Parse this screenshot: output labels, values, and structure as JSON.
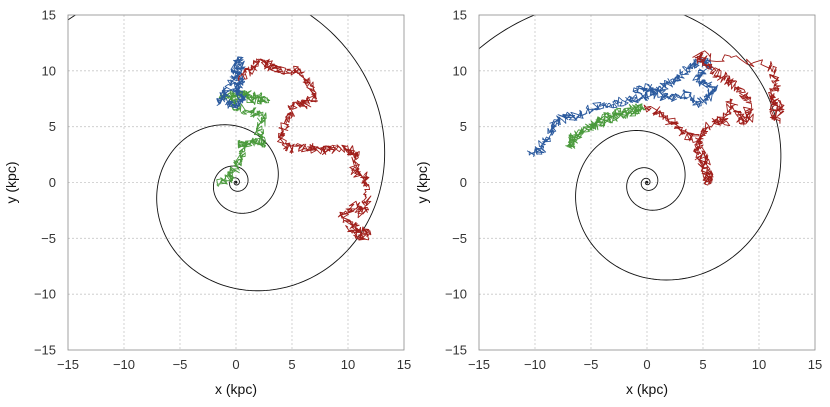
{
  "chart_data": [
    {
      "type": "line",
      "id": "left",
      "title": "",
      "xlabel": "x (kpc)",
      "ylabel": "y (kpc)",
      "xlim": [
        -15,
        15
      ],
      "ylim": [
        -15,
        15
      ],
      "grid": true,
      "x_ticks": [
        "−15",
        "−10",
        "−5",
        "0",
        "5",
        "10",
        "15"
      ],
      "y_ticks": [
        "−15",
        "−10",
        "−5",
        "0",
        "5",
        "10",
        "15"
      ],
      "spiral": {
        "type": "logarithmic",
        "a": 0.3,
        "b": 0.2,
        "theta_min": -18,
        "theta_max": 22.0,
        "rotation_deg": 0,
        "color": "#111111"
      },
      "series": [
        {
          "name": "green",
          "color": "#4a9a3c",
          "seed": 11,
          "points": [
            [
              -1.5,
              0
            ],
            [
              -0.5,
              0.5
            ],
            [
              0,
              1.5
            ],
            [
              0.5,
              2.5
            ],
            [
              0.5,
              3.5
            ],
            [
              1.5,
              3.6
            ],
            [
              2.3,
              3.5
            ],
            [
              2,
              4.8
            ],
            [
              2.5,
              5.8
            ],
            [
              1.5,
              6.3
            ],
            [
              0,
              6.8
            ],
            [
              -0.5,
              7.5
            ],
            [
              0.5,
              7.8
            ],
            [
              1.8,
              7.2
            ],
            [
              2.6,
              7.5
            ],
            [
              1.5,
              7.8
            ],
            [
              0,
              8
            ],
            [
              -1.5,
              7.5
            ]
          ]
        },
        {
          "name": "blue",
          "color": "#2b5a9e",
          "seed": 23,
          "points": [
            [
              -1.5,
              7
            ],
            [
              -1,
              8
            ],
            [
              -0.2,
              9
            ],
            [
              0.5,
              10
            ],
            [
              0.3,
              11
            ],
            [
              -0.2,
              10
            ],
            [
              0.5,
              9
            ],
            [
              0,
              8.2
            ],
            [
              0.8,
              7.5
            ],
            [
              0,
              7
            ],
            [
              -1,
              7.2
            ]
          ]
        },
        {
          "name": "red",
          "color": "#a01e1a",
          "seed": 37,
          "points": [
            [
              0.5,
              9.5
            ],
            [
              1.5,
              10
            ],
            [
              2,
              10.8
            ],
            [
              3,
              10.5
            ],
            [
              4,
              10
            ],
            [
              5.5,
              10
            ],
            [
              6.5,
              9
            ],
            [
              7,
              7.5
            ],
            [
              6,
              7
            ],
            [
              5,
              6.8
            ],
            [
              4.5,
              5.5
            ],
            [
              4,
              4
            ],
            [
              5,
              3
            ],
            [
              6.5,
              3.2
            ],
            [
              7.5,
              2.8
            ],
            [
              8.5,
              3
            ],
            [
              10,
              3
            ],
            [
              10.8,
              2.5
            ],
            [
              10.5,
              1
            ],
            [
              11.5,
              0.5
            ],
            [
              11.8,
              -1.5
            ],
            [
              11.3,
              -2.8
            ],
            [
              10.5,
              -2
            ],
            [
              9.5,
              -3
            ],
            [
              10.8,
              -4
            ],
            [
              11.7,
              -4.5
            ],
            [
              11.2,
              -5
            ],
            [
              10,
              -4
            ]
          ]
        }
      ]
    },
    {
      "type": "line",
      "id": "right",
      "title": "",
      "xlabel": "x (kpc)",
      "ylabel": "y (kpc)",
      "xlim": [
        -15,
        15
      ],
      "ylim": [
        -15,
        15
      ],
      "grid": true,
      "x_ticks": [
        "−15",
        "−10",
        "−5",
        "0",
        "5",
        "10",
        "15"
      ],
      "y_ticks": [
        "−15",
        "−10",
        "−5",
        "0",
        "5",
        "10",
        "15"
      ],
      "spiral": {
        "type": "logarithmic",
        "a": 0.3,
        "b": 0.2,
        "theta_min": -18,
        "theta_max": 22.0,
        "rotation_deg": 30,
        "color": "#111111"
      },
      "series": [
        {
          "name": "blue",
          "color": "#2b5a9e",
          "seed": 51,
          "points": [
            [
              -10.5,
              2.5
            ],
            [
              -9.5,
              3
            ],
            [
              -9,
              4
            ],
            [
              -8.5,
              5
            ],
            [
              -7.5,
              5.8
            ],
            [
              -6,
              6
            ],
            [
              -4.5,
              6.8
            ],
            [
              -3,
              7
            ],
            [
              -1.5,
              7.5
            ],
            [
              0,
              7.7
            ],
            [
              1,
              8.2
            ],
            [
              2,
              9
            ],
            [
              3,
              9.5
            ],
            [
              4,
              10.5
            ],
            [
              5,
              11
            ],
            [
              5.5,
              10.5
            ],
            [
              4.5,
              9.5
            ],
            [
              5,
              8.8
            ],
            [
              6,
              8.5
            ],
            [
              5.5,
              7.5
            ],
            [
              4.5,
              7
            ],
            [
              3.5,
              8
            ],
            [
              2,
              7.5
            ],
            [
              1,
              8
            ],
            [
              0,
              8.5
            ],
            [
              -1,
              8
            ]
          ]
        },
        {
          "name": "red",
          "color": "#a01e1a",
          "seed": 67,
          "points": [
            [
              0,
              6.8
            ],
            [
              1.5,
              6.2
            ],
            [
              2.5,
              5
            ],
            [
              3.5,
              4.3
            ],
            [
              4.5,
              3.8
            ],
            [
              5,
              2.5
            ],
            [
              5.5,
              1
            ],
            [
              5.5,
              0
            ],
            [
              5,
              1.5
            ],
            [
              4.5,
              3
            ],
            [
              5,
              4.5
            ],
            [
              6,
              5.5
            ],
            [
              7,
              5.5
            ],
            [
              7.5,
              7.2
            ],
            [
              8.5,
              5.5
            ],
            [
              9.2,
              5.8
            ],
            [
              8.8,
              7.5
            ],
            [
              8,
              8.5
            ],
            [
              7,
              9.2
            ],
            [
              6,
              10
            ],
            [
              5,
              11
            ],
            [
              4.5,
              11.5
            ],
            [
              11,
              10.5
            ],
            [
              11.6,
              9
            ],
            [
              11.2,
              7.5
            ],
            [
              12,
              6.8
            ],
            [
              11.5,
              5.5
            ],
            [
              11.2,
              7
            ]
          ]
        },
        {
          "name": "green",
          "color": "#4a9a3c",
          "seed": 83,
          "points": [
            [
              -7,
              3
            ],
            [
              -6.5,
              4
            ],
            [
              -5.5,
              4.8
            ],
            [
              -4.5,
              5.5
            ],
            [
              -3.5,
              6
            ],
            [
              -2.5,
              6.3
            ],
            [
              -1.5,
              6.5
            ],
            [
              -0.5,
              6.8
            ],
            [
              -1.5,
              6.2
            ],
            [
              -3,
              5.8
            ],
            [
              -4.5,
              5.2
            ],
            [
              -6,
              4.5
            ],
            [
              -6.8,
              3.5
            ]
          ]
        }
      ]
    }
  ]
}
